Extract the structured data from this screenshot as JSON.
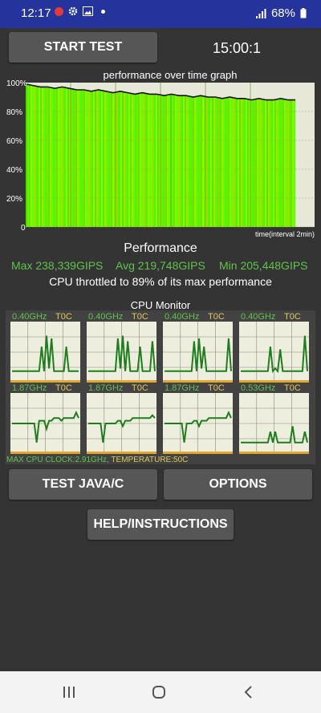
{
  "status_bar": {
    "time": "12:17",
    "battery": "68%"
  },
  "controls": {
    "start_label": "START TEST",
    "timer": "15:00:1"
  },
  "graph": {
    "title": "performance over time graph",
    "y_ticks": [
      "100%",
      "80%",
      "60%",
      "40%",
      "20%",
      "0"
    ],
    "x_label": "time(interval 2min)"
  },
  "chart_data": {
    "type": "line",
    "title": "performance over time graph",
    "xlabel": "time(interval 2min)",
    "ylabel": "",
    "ylim": [
      0,
      100
    ],
    "series": [
      {
        "values": [
          99,
          98,
          97,
          97,
          96,
          97,
          96,
          95,
          95,
          94,
          95,
          94,
          93,
          94,
          93,
          92,
          93,
          92,
          92,
          91,
          92,
          91,
          91,
          90,
          91,
          90,
          90,
          89,
          90,
          89,
          89,
          88,
          89,
          88,
          88,
          89,
          88,
          88
        ]
      }
    ]
  },
  "performance": {
    "title": "Performance",
    "max": "Max 238,339GIPS",
    "avg": "Avg 219,748GIPS",
    "min": "Min 205,448GIPS",
    "throttle_text": "CPU throttled to 89% of its max performance"
  },
  "cpu_monitor": {
    "title": "CPU Monitor",
    "cores": [
      {
        "freq": "0.40GHz",
        "temp": "T0C",
        "levels": [
          0.15,
          0.15,
          0.15,
          0.15,
          0.15,
          0.15,
          0.15,
          0.15,
          0.15,
          0.15,
          0.15,
          0.15,
          0.6,
          0.15,
          0.8,
          0.2,
          0.75,
          0.15,
          0.15,
          0.15,
          0.15,
          0.15,
          0.6,
          0.15,
          0.15,
          0.15,
          0.15,
          0.15
        ]
      },
      {
        "freq": "0.40GHz",
        "temp": "T0C",
        "levels": [
          0.15,
          0.15,
          0.15,
          0.15,
          0.15,
          0.15,
          0.15,
          0.15,
          0.15,
          0.15,
          0.15,
          0.15,
          0.75,
          0.2,
          0.8,
          0.15,
          0.7,
          0.15,
          0.15,
          0.15,
          0.15,
          0.6,
          0.15,
          0.15,
          0.15,
          0.15,
          0.7,
          0.15
        ]
      },
      {
        "freq": "0.40GHz",
        "temp": "T0C",
        "levels": [
          0.15,
          0.15,
          0.15,
          0.15,
          0.15,
          0.15,
          0.15,
          0.15,
          0.15,
          0.15,
          0.15,
          0.15,
          0.7,
          0.15,
          0.75,
          0.2,
          0.6,
          0.15,
          0.15,
          0.15,
          0.15,
          0.15,
          0.15,
          0.15,
          0.15,
          0.15,
          0.75,
          0.15
        ]
      },
      {
        "freq": "0.40GHz",
        "temp": "T0C",
        "levels": [
          0.15,
          0.15,
          0.15,
          0.15,
          0.15,
          0.15,
          0.15,
          0.15,
          0.15,
          0.15,
          0.15,
          0.15,
          0.6,
          0.15,
          0.2,
          0.15,
          0.55,
          0.15,
          0.15,
          0.15,
          0.15,
          0.15,
          0.15,
          0.15,
          0.15,
          0.15,
          0.8,
          0.15
        ]
      },
      {
        "freq": "1.87GHz",
        "temp": "T0C",
        "levels": [
          0.5,
          0.5,
          0.5,
          0.5,
          0.5,
          0.5,
          0.5,
          0.5,
          0.5,
          0.5,
          0.15,
          0.55,
          0.55,
          0.55,
          0.4,
          0.55,
          0.55,
          0.6,
          0.6,
          0.6,
          0.55,
          0.6,
          0.6,
          0.6,
          0.6,
          0.6,
          0.7,
          0.6
        ]
      },
      {
        "freq": "1.87GHz",
        "temp": "T0C",
        "levels": [
          0.5,
          0.5,
          0.5,
          0.5,
          0.5,
          0.5,
          0.15,
          0.5,
          0.5,
          0.5,
          0.5,
          0.5,
          0.55,
          0.55,
          0.45,
          0.55,
          0.55,
          0.55,
          0.6,
          0.6,
          0.6,
          0.6,
          0.6,
          0.6,
          0.6,
          0.6,
          0.65,
          0.6
        ]
      },
      {
        "freq": "1.87GHz",
        "temp": "T0C",
        "levels": [
          0.5,
          0.5,
          0.5,
          0.5,
          0.5,
          0.5,
          0.5,
          0.5,
          0.15,
          0.5,
          0.5,
          0.5,
          0.55,
          0.55,
          0.45,
          0.55,
          0.55,
          0.55,
          0.6,
          0.6,
          0.6,
          0.6,
          0.6,
          0.6,
          0.6,
          0.6,
          0.7,
          0.6
        ]
      },
      {
        "freq": "0.53GHz",
        "temp": "T0C",
        "levels": [
          0.15,
          0.15,
          0.15,
          0.15,
          0.15,
          0.15,
          0.15,
          0.15,
          0.15,
          0.15,
          0.15,
          0.15,
          0.35,
          0.15,
          0.35,
          0.15,
          0.15,
          0.15,
          0.15,
          0.15,
          0.15,
          0.45,
          0.15,
          0.15,
          0.15,
          0.15,
          0.35,
          0.15
        ]
      }
    ],
    "max_clock": "MAX CPU CLOCK:2.91GHz,",
    "temperature": " TEMPERATURE:50C"
  },
  "buttons": {
    "test_java": "TEST JAVA/C",
    "options": "OPTIONS",
    "help": "HELP/INSTRUCTIONS"
  },
  "colors": {
    "accent_green": "#5fc24b",
    "temp_yellow": "#e0c85c",
    "status_bar": "#24349c"
  }
}
